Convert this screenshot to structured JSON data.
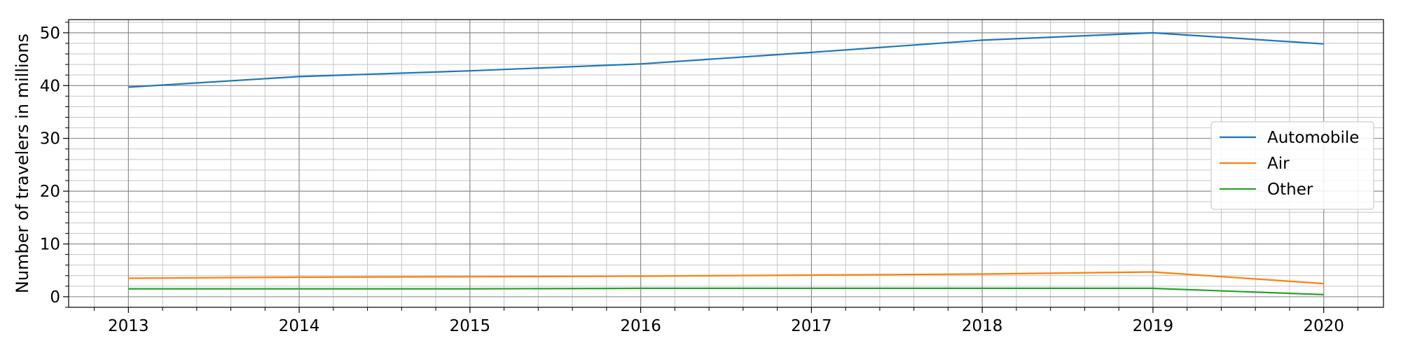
{
  "chart_data": {
    "type": "line",
    "x": [
      2013,
      2014,
      2015,
      2016,
      2017,
      2018,
      2019,
      2020
    ],
    "series": [
      {
        "name": "Automobile",
        "color": "#1f77b4",
        "values": [
          39.7,
          41.7,
          42.8,
          44.1,
          46.3,
          48.6,
          50.0,
          47.9
        ]
      },
      {
        "name": "Air",
        "color": "#ff7f0e",
        "values": [
          3.5,
          3.7,
          3.8,
          3.9,
          4.1,
          4.3,
          4.7,
          2.5
        ]
      },
      {
        "name": "Other",
        "color": "#2ca02c",
        "values": [
          1.5,
          1.5,
          1.5,
          1.6,
          1.6,
          1.6,
          1.6,
          0.4
        ]
      }
    ],
    "xlabel": "",
    "ylabel": "Number of travelers in millions",
    "xlim": [
      2012.65,
      2020.35
    ],
    "ylim": [
      -2,
      52.5
    ],
    "xticks": [
      "2013",
      "2014",
      "2015",
      "2016",
      "2017",
      "2018",
      "2019",
      "2020"
    ],
    "yticks": [
      0,
      10,
      20,
      30,
      40,
      50
    ],
    "grid": true,
    "minor_grid": true,
    "legend_position": "right"
  }
}
